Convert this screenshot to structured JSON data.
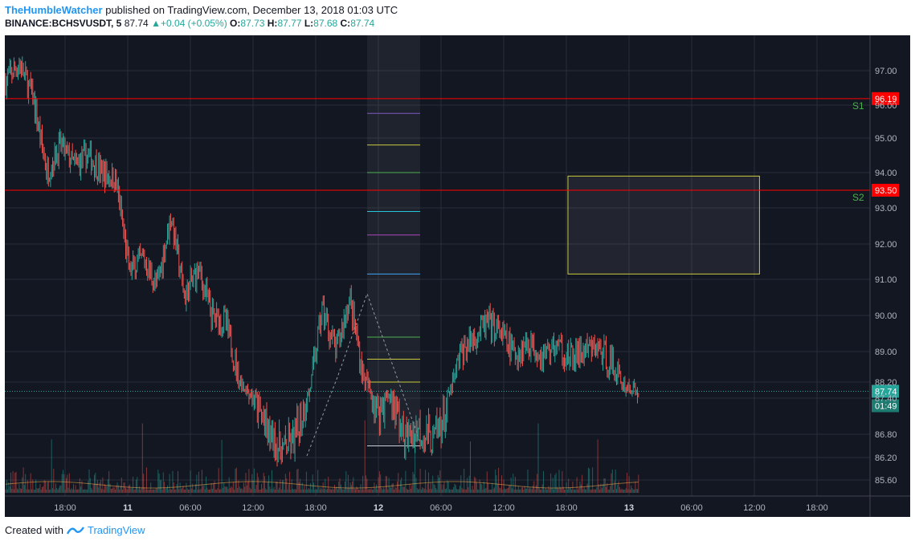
{
  "header": {
    "author": "TheHumbleWatcher",
    "published_text": "published on TradingView.com, December 13, 2018 01:03 UTC",
    "symbol": "BINANCE:BCHSVUSDT, 5",
    "last": "87.74",
    "change": "+0.04 (+0.05%)",
    "o_label": "O:",
    "o": "87.73",
    "h_label": "H:",
    "h": "87.77",
    "l_label": "L:",
    "l": "87.68",
    "c_label": "C:",
    "c": "87.74"
  },
  "footer": {
    "created_with": "Created with",
    "brand": "TradingView"
  },
  "colors": {
    "background": "#131722",
    "up": "#26a69a",
    "down": "#ef5350",
    "resistance": "#ff0000",
    "zone": "#c8c83c",
    "text": "#b2b5be"
  },
  "chart_data": {
    "type": "candlestick",
    "y_ticks": [
      "97.00",
      "96.00",
      "95.00",
      "94.00",
      "93.00",
      "92.00",
      "91.00",
      "90.00",
      "89.00",
      "88.20",
      "87.40",
      "86.80",
      "86.20",
      "85.60"
    ],
    "y_tick_values": [
      97.0,
      96.0,
      95.0,
      94.0,
      93.0,
      92.0,
      91.0,
      90.0,
      89.0,
      88.2,
      87.4,
      86.8,
      86.2,
      85.6
    ],
    "x_ticks": [
      "18:00",
      "11",
      "06:00",
      "12:00",
      "18:00",
      "12",
      "06:00",
      "12:00",
      "18:00",
      "13",
      "06:00",
      "12:00",
      "18:00"
    ],
    "x_tick_bold": [
      false,
      true,
      false,
      false,
      false,
      true,
      false,
      false,
      false,
      true,
      false,
      false,
      false
    ],
    "price_path": [
      [
        0,
        96.7
      ],
      [
        1,
        97.2
      ],
      [
        2,
        96.2
      ],
      [
        3,
        94.0
      ],
      [
        4,
        94.8
      ],
      [
        5,
        94.2
      ],
      [
        6,
        94.5
      ],
      [
        7,
        94.0
      ],
      [
        8,
        93.8
      ],
      [
        9,
        91.2
      ],
      [
        10,
        91.6
      ],
      [
        11,
        90.8
      ],
      [
        12,
        92.8
      ],
      [
        13,
        90.5
      ],
      [
        14,
        91.3
      ],
      [
        15,
        90.0
      ],
      [
        16,
        89.8
      ],
      [
        17,
        88.2
      ],
      [
        18,
        87.5
      ],
      [
        19,
        86.8
      ],
      [
        20,
        86.4
      ],
      [
        21,
        86.6
      ],
      [
        22,
        87.6
      ],
      [
        23,
        90.2
      ],
      [
        24,
        89.0
      ],
      [
        25,
        90.5
      ],
      [
        26,
        88.3
      ],
      [
        27,
        87.2
      ],
      [
        28,
        87.6
      ],
      [
        29,
        86.6
      ],
      [
        30,
        86.9
      ],
      [
        31,
        86.6
      ],
      [
        32,
        87.2
      ],
      [
        33,
        88.9
      ],
      [
        34,
        89.4
      ],
      [
        35,
        89.8
      ],
      [
        36,
        89.5
      ],
      [
        37,
        88.9
      ],
      [
        38,
        89.3
      ],
      [
        39,
        88.9
      ],
      [
        40,
        89.2
      ],
      [
        41,
        88.8
      ],
      [
        42,
        89.0
      ],
      [
        43,
        89.1
      ],
      [
        44,
        88.7
      ],
      [
        45,
        88.0
      ],
      [
        46,
        87.7
      ]
    ],
    "last_price": "87.74",
    "countdown": "01:49",
    "levels": [
      {
        "label": "S1",
        "price": "96.19",
        "value": 96.19
      },
      {
        "label": "S2",
        "price": "93.50",
        "value": 93.5
      }
    ],
    "zone": {
      "top": 93.9,
      "bottom": 91.15,
      "from_hours": 43.0,
      "to_hours": 50.0
    },
    "fib": {
      "from_hours": 33.2,
      "to_hours": 35.2,
      "upper_levels": [
        95.75,
        94.8,
        94.0,
        92.9,
        92.25,
        91.15
      ],
      "upper_colors": [
        "#7e57c2",
        "#c8c83c",
        "#4caf50",
        "#26c6da",
        "#ab47bc",
        "#42a5f5"
      ],
      "lower_levels": [
        89.4,
        88.8,
        88.2,
        86.5
      ],
      "lower_colors": [
        "#4caf50",
        "#c8c83c",
        "#c8c83c",
        "#d1d4dc"
      ]
    }
  }
}
